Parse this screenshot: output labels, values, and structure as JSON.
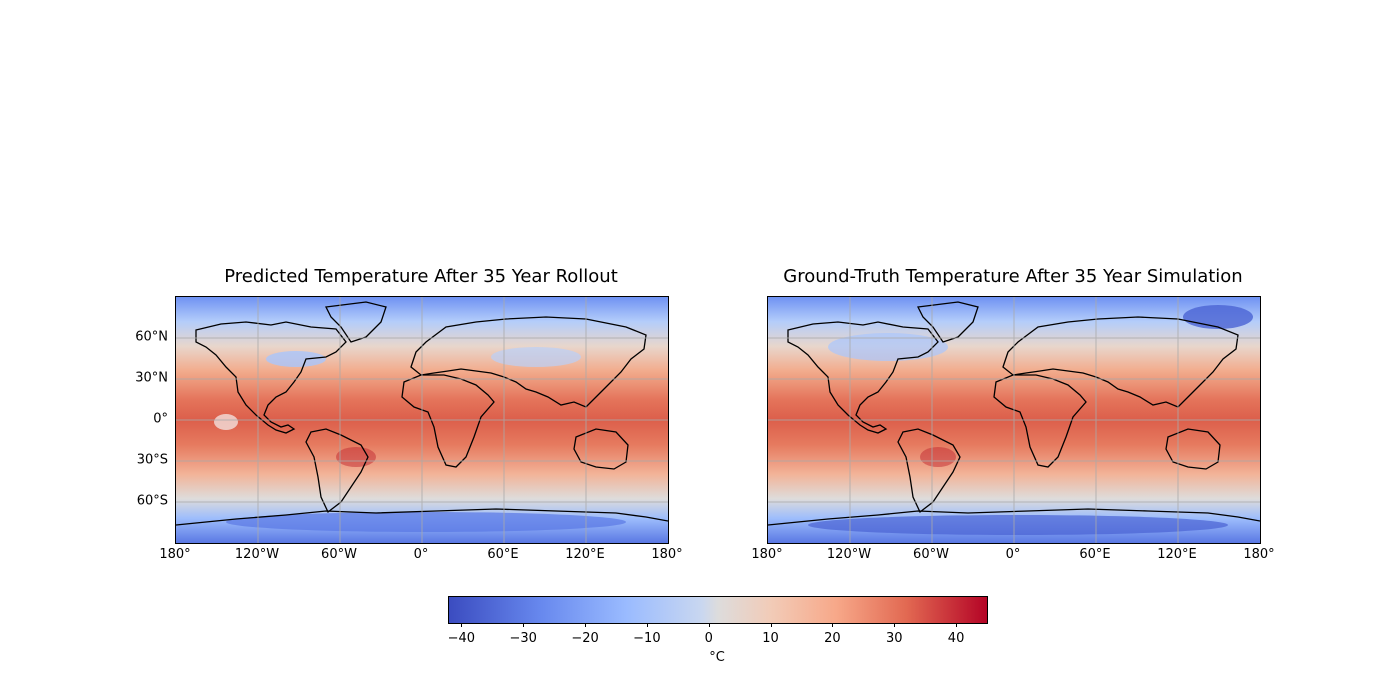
{
  "maps": [
    {
      "title": "Predicted Temperature After 35 Year Rollout"
    },
    {
      "title": "Ground-Truth Temperature After 35 Year Simulation"
    }
  ],
  "axes": {
    "x_ticks": [
      "180°",
      "120°W",
      "60°W",
      "0°",
      "60°E",
      "120°E",
      "180°"
    ],
    "y_ticks": [
      "60°N",
      "30°N",
      "0°",
      "30°S",
      "60°S"
    ]
  },
  "colorbar": {
    "label": "°C",
    "ticks": [
      "−40",
      "−30",
      "−20",
      "−10",
      "0",
      "10",
      "20",
      "30",
      "40"
    ],
    "tick_values": [
      -40,
      -30,
      -20,
      -10,
      0,
      10,
      20,
      30,
      40
    ],
    "range": [
      -42,
      45
    ],
    "colormap": "coolwarm",
    "colors": [
      "#3b4cc0",
      "#7397f3",
      "#aac7fd",
      "#dddcdc",
      "#f7b89c",
      "#e7745b",
      "#b40426"
    ]
  }
}
